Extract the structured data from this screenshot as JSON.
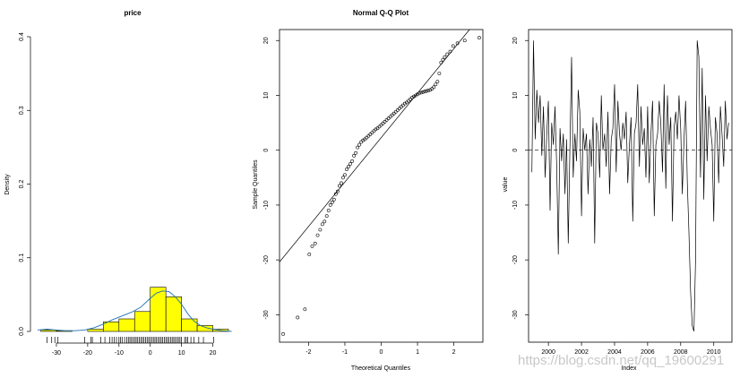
{
  "watermark": "https://blog.csdn.net/qq_19600291",
  "chart_data": [
    {
      "type": "bar",
      "title": "price",
      "xlabel": "",
      "ylabel": "Density",
      "xlim": [
        -36,
        27
      ],
      "ylim": [
        0,
        0.4
      ],
      "x_ticks": [
        -30,
        -20,
        -10,
        0,
        10,
        20
      ],
      "y_ticks": [
        0.0,
        0.1,
        0.2,
        0.3,
        0.4
      ],
      "bar_color": "#ffff00",
      "bins": [
        {
          "start": -35,
          "end": -30,
          "value": 0.002
        },
        {
          "start": -30,
          "end": -25,
          "value": 0.001
        },
        {
          "start": -25,
          "end": -20,
          "value": 0.0
        },
        {
          "start": -20,
          "end": -15,
          "value": 0.003
        },
        {
          "start": -15,
          "end": -10,
          "value": 0.013
        },
        {
          "start": -10,
          "end": -5,
          "value": 0.017
        },
        {
          "start": -5,
          "end": 0,
          "value": 0.027
        },
        {
          "start": 0,
          "end": 5,
          "value": 0.06
        },
        {
          "start": 5,
          "end": 10,
          "value": 0.047
        },
        {
          "start": 10,
          "end": 15,
          "value": 0.017
        },
        {
          "start": 15,
          "end": 20,
          "value": 0.008
        },
        {
          "start": 20,
          "end": 25,
          "value": 0.003
        }
      ],
      "density_curve": {
        "x": [
          -36,
          -33,
          -30,
          -27,
          -24,
          -21,
          -18,
          -15,
          -12,
          -9,
          -6,
          -3,
          0,
          2,
          4,
          6,
          8,
          10,
          12,
          14,
          16,
          18,
          20,
          23,
          26
        ],
        "y": [
          0.002,
          0.003,
          0.002,
          0.001,
          0.001,
          0.002,
          0.005,
          0.01,
          0.016,
          0.021,
          0.026,
          0.033,
          0.045,
          0.052,
          0.055,
          0.054,
          0.047,
          0.037,
          0.024,
          0.014,
          0.008,
          0.005,
          0.003,
          0.001,
          0.0
        ]
      },
      "rug": [
        -33,
        -31.5,
        -30.5,
        -29.5,
        -21,
        -19,
        -18.5,
        -15.8,
        -14.5,
        -13,
        -12.2,
        -11.5,
        -10.8,
        -10,
        -9.5,
        -9,
        -8.2,
        -7.5,
        -7,
        -6.5,
        -6,
        -5.5,
        -5,
        -4.5,
        -4,
        -3.5,
        -3,
        -2.5,
        -2,
        -1.5,
        -1,
        -0.5,
        0,
        0.5,
        1,
        1.5,
        2,
        2.5,
        3,
        3.5,
        4,
        4.5,
        5,
        5.5,
        6,
        6.5,
        7,
        7.5,
        8,
        8.5,
        9,
        9.5,
        10,
        11,
        11.5,
        12,
        13,
        14,
        15.5,
        17,
        20.3
      ]
    },
    {
      "type": "scatter",
      "title": "Normal Q-Q Plot",
      "xlabel": "Theoretical Quantiles",
      "ylabel": "Sample Quantiles",
      "xlim": [
        -2.8,
        2.8
      ],
      "ylim": [
        -35,
        22
      ],
      "x_ticks": [
        -2,
        -1,
        0,
        1,
        2
      ],
      "y_ticks": [
        -30,
        -20,
        -10,
        0,
        10,
        20
      ],
      "reference_line": {
        "intercept": 2.3,
        "slope": 8.1
      },
      "points": {
        "x": [
          -2.7,
          -2.3,
          -2.1,
          -1.98,
          -1.9,
          -1.82,
          -1.75,
          -1.68,
          -1.62,
          -1.56,
          -1.5,
          -1.45,
          -1.4,
          -1.35,
          -1.3,
          -1.25,
          -1.2,
          -1.15,
          -1.1,
          -1.05,
          -1.0,
          -0.95,
          -0.9,
          -0.85,
          -0.8,
          -0.75,
          -0.7,
          -0.65,
          -0.6,
          -0.55,
          -0.5,
          -0.45,
          -0.4,
          -0.35,
          -0.3,
          -0.25,
          -0.2,
          -0.15,
          -0.1,
          -0.05,
          0.0,
          0.05,
          0.1,
          0.15,
          0.2,
          0.25,
          0.3,
          0.35,
          0.4,
          0.45,
          0.5,
          0.55,
          0.6,
          0.65,
          0.7,
          0.75,
          0.8,
          0.85,
          0.9,
          0.95,
          1.0,
          1.05,
          1.1,
          1.15,
          1.2,
          1.25,
          1.3,
          1.35,
          1.4,
          1.45,
          1.5,
          1.55,
          1.6,
          1.65,
          1.7,
          1.75,
          1.82,
          1.9,
          1.98,
          2.1,
          2.3,
          2.7
        ],
        "y": [
          -33.5,
          -30.5,
          -29.0,
          -19.0,
          -17.5,
          -17.0,
          -15.5,
          -14.5,
          -13.5,
          -13.0,
          -12.0,
          -11.0,
          -10.0,
          -9.5,
          -9.0,
          -8.0,
          -7.5,
          -6.5,
          -6.0,
          -5.0,
          -4.5,
          -3.5,
          -3.0,
          -2.5,
          -2.0,
          -1.0,
          -0.5,
          0.5,
          1.0,
          1.5,
          1.8,
          2.0,
          2.3,
          2.6,
          2.9,
          3.2,
          3.5,
          3.8,
          4.0,
          4.3,
          4.6,
          4.9,
          5.2,
          5.5,
          5.8,
          6.1,
          6.4,
          6.7,
          7.0,
          7.3,
          7.6,
          7.9,
          8.2,
          8.5,
          8.7,
          9.0,
          9.3,
          9.6,
          9.8,
          10.0,
          10.2,
          10.4,
          10.5,
          10.6,
          10.7,
          10.8,
          10.9,
          11.0,
          11.2,
          11.5,
          12.0,
          12.5,
          14.0,
          16.0,
          16.5,
          17.0,
          17.5,
          18.0,
          19.0,
          19.5,
          20.0,
          20.5
        ]
      }
    },
    {
      "type": "line",
      "title": "",
      "xlabel": "Index",
      "ylabel": "value",
      "xlim": [
        1998.8,
        2011.1
      ],
      "ylim": [
        -35,
        22
      ],
      "x_ticks": [
        2000,
        2002,
        2004,
        2006,
        2008,
        2010
      ],
      "y_ticks": [
        -30,
        -20,
        -10,
        0,
        10,
        20
      ],
      "hline": 0,
      "series": [
        {
          "x": [
            1999.0,
            1999.1,
            1999.2,
            1999.3,
            1999.4,
            1999.5,
            1999.6,
            1999.7,
            1999.8,
            1999.9,
            2000.0,
            2000.1,
            2000.2,
            2000.3,
            2000.4,
            2000.5,
            2000.6,
            2000.7,
            2000.8,
            2000.9,
            2001.0,
            2001.1,
            2001.2,
            2001.3,
            2001.4,
            2001.5,
            2001.6,
            2001.7,
            2001.8,
            2001.9,
            2002.0,
            2002.1,
            2002.2,
            2002.3,
            2002.4,
            2002.5,
            2002.6,
            2002.7,
            2002.8,
            2002.9,
            2003.0,
            2003.1,
            2003.2,
            2003.3,
            2003.4,
            2003.5,
            2003.6,
            2003.7,
            2003.8,
            2003.9,
            2004.0,
            2004.1,
            2004.2,
            2004.3,
            2004.4,
            2004.5,
            2004.6,
            2004.7,
            2004.8,
            2004.9,
            2005.0,
            2005.1,
            2005.2,
            2005.3,
            2005.4,
            2005.5,
            2005.6,
            2005.7,
            2005.8,
            2005.9,
            2006.0,
            2006.1,
            2006.2,
            2006.3,
            2006.4,
            2006.5,
            2006.6,
            2006.7,
            2006.8,
            2006.9,
            2007.0,
            2007.1,
            2007.2,
            2007.3,
            2007.4,
            2007.5,
            2007.6,
            2007.7,
            2007.8,
            2007.9,
            2008.0,
            2008.1,
            2008.2,
            2008.3,
            2008.4,
            2008.5,
            2008.6,
            2008.7,
            2008.8,
            2008.9,
            2009.0,
            2009.1,
            2009.2,
            2009.3,
            2009.4,
            2009.5,
            2009.6,
            2009.7,
            2009.8,
            2009.9,
            2010.0,
            2010.1,
            2010.2,
            2010.3,
            2010.4,
            2010.5,
            2010.6,
            2010.7,
            2010.8,
            2010.9
          ],
          "y": [
            -4,
            20,
            2,
            11,
            5,
            10,
            -1,
            8,
            -5,
            3,
            9,
            -11,
            5,
            1,
            8,
            -3,
            -19,
            4,
            -2,
            3,
            -8,
            2,
            -17,
            0,
            17,
            -5,
            3,
            -2,
            11,
            7,
            -12,
            4,
            0,
            3,
            -8,
            2,
            -3,
            6,
            -17,
            5,
            3,
            -5,
            10,
            0,
            3,
            -3,
            7,
            -8,
            2,
            4,
            12,
            -4,
            9,
            3,
            0,
            5,
            2,
            7,
            -6,
            1,
            6,
            -13,
            3,
            5,
            12,
            -3,
            8,
            1,
            4,
            -5,
            8,
            -6,
            3,
            9,
            -12,
            1,
            3,
            9,
            5,
            -4,
            12,
            -7,
            10,
            1,
            6,
            -13,
            4,
            7,
            2,
            10,
            4,
            -8,
            2,
            9,
            -6,
            -15,
            -26,
            -32,
            -33,
            -20,
            20,
            17,
            -5,
            15,
            -9,
            10,
            -2,
            8,
            4,
            1,
            -13,
            6,
            3,
            -6,
            8,
            3,
            -3,
            9,
            2,
            5
          ]
        }
      ]
    }
  ]
}
